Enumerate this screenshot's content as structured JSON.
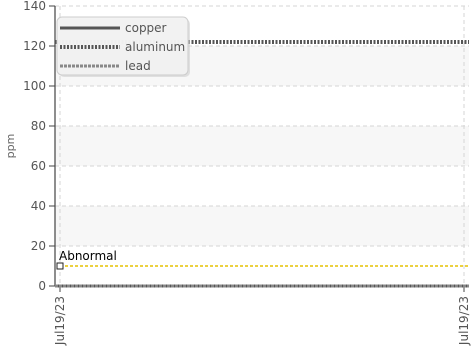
{
  "chart_data": {
    "type": "line",
    "ylabel": "ppm",
    "xlabel": "",
    "ylim": [
      0,
      140
    ],
    "yticks": [
      0,
      20,
      40,
      60,
      80,
      100,
      120,
      140
    ],
    "x_tick_labels": [
      "Jul19/23",
      "Jul19/23"
    ],
    "grid": true,
    "legend_position": "top-left",
    "series": [
      {
        "name": "copper",
        "values": [
          0,
          0
        ],
        "color": "#555555",
        "style": "solid"
      },
      {
        "name": "aluminum",
        "values": [
          122,
          122
        ],
        "color": "#555555",
        "style": "dotted"
      },
      {
        "name": "lead",
        "values": [
          0,
          0
        ],
        "color": "#888888",
        "style": "dashed"
      }
    ],
    "threshold": {
      "label": "Abnormal",
      "value": 10,
      "color": "#e6c200"
    }
  }
}
